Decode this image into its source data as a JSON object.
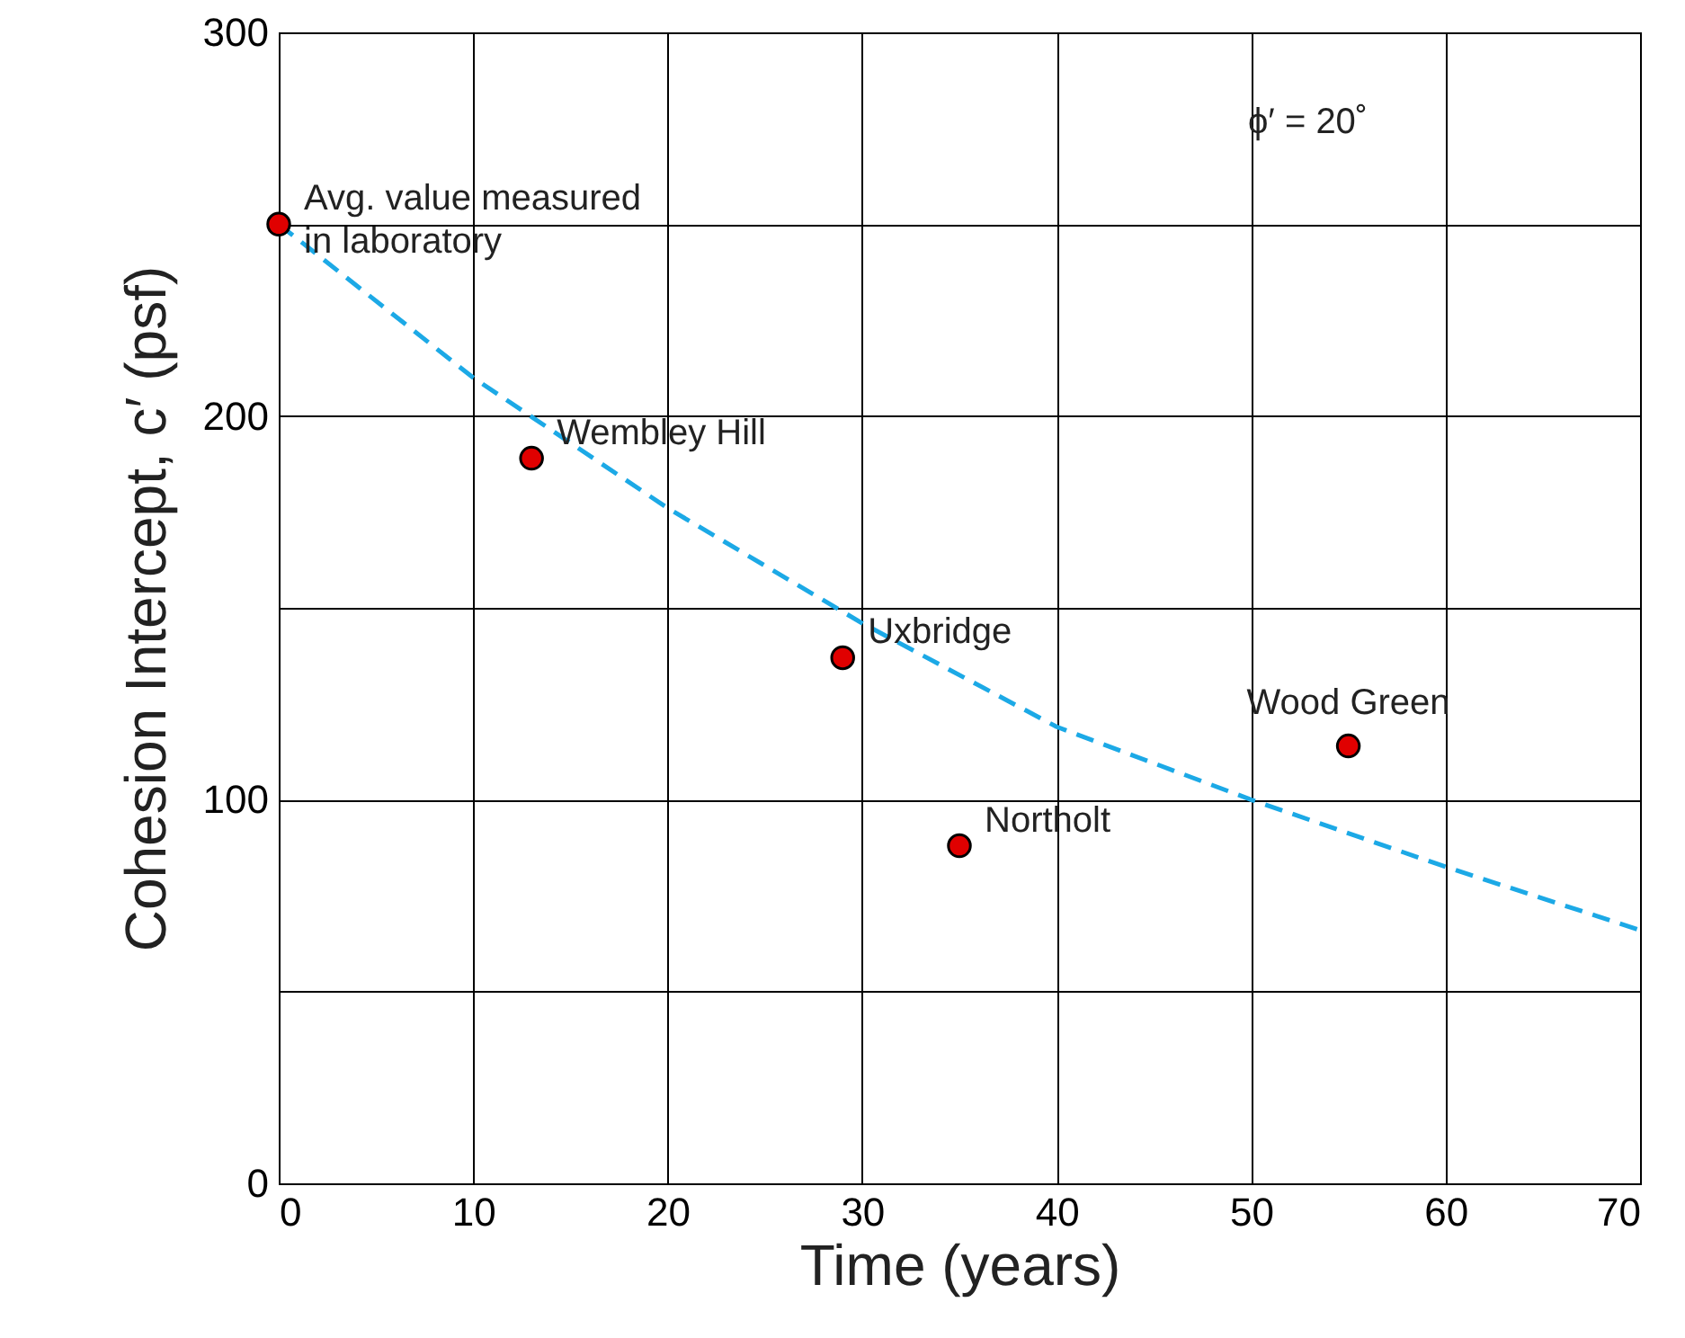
{
  "chart_data": {
    "type": "scatter",
    "xlabel": "Time (years)",
    "ylabel": "Cohesion Intercept, c′ (psf)",
    "xlim": [
      0,
      70
    ],
    "xticks": [
      0,
      10,
      20,
      30,
      40,
      50,
      60,
      70
    ],
    "ylim": [
      0,
      300
    ],
    "yticks": [
      0,
      {
        "value": 50,
        "label": null
      },
      100,
      {
        "value": 150,
        "label": null
      },
      200,
      {
        "value": 250,
        "label": null
      },
      300
    ],
    "grid": true,
    "series": [
      {
        "type": "line",
        "color": "#1ca9e6",
        "line_style": "dashed",
        "marker": "none",
        "x": [
          0,
          10,
          20,
          30,
          40,
          50,
          60,
          70
        ],
        "values": [
          250,
          210,
          176,
          146,
          119,
          100,
          82.5,
          66
        ]
      },
      {
        "type": "scatter",
        "color": "#e00000",
        "marker": "circle",
        "x": [
          0,
          13,
          29,
          35,
          55
        ],
        "values": [
          250,
          189,
          137,
          88,
          114
        ]
      }
    ],
    "annotations": [
      {
        "text": "Avg. value measured\nin laboratory",
        "x": 0,
        "y": 250
      },
      {
        "text": "Wembley Hill",
        "x": 13,
        "y": 189
      },
      {
        "text": "Uxbridge",
        "x": 29,
        "y": 137
      },
      {
        "text": "Northolt",
        "x": 35,
        "y": 88
      },
      {
        "text": "Wood Green",
        "x": 55,
        "y": 114
      },
      "ϕ′ = 20˚"
    ]
  }
}
